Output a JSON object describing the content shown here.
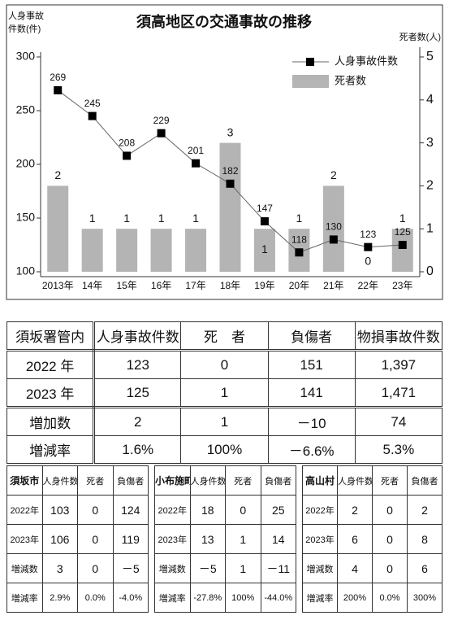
{
  "chart_data": {
    "type": "combo",
    "title": "須高地区の交通事故の推移",
    "ylabel": [
      "人身事故",
      "件数(件)"
    ],
    "y2label": "死者数(人)",
    "categories": [
      "2013年",
      "14年",
      "15年",
      "16年",
      "17年",
      "18年",
      "19年",
      "20年",
      "21年",
      "22年",
      "23年"
    ],
    "series": [
      {
        "name": "人身事故件数",
        "type": "line",
        "axis": "y",
        "color": "#000000",
        "values": [
          269,
          245,
          208,
          229,
          201,
          182,
          147,
          118,
          130,
          123,
          125
        ]
      },
      {
        "name": "死者数",
        "type": "bar",
        "axis": "y2",
        "color": "#b4b4b4",
        "values": [
          2,
          1,
          1,
          1,
          1,
          3,
          1,
          1,
          2,
          0,
          1
        ]
      }
    ],
    "ylim": [
      100,
      300
    ],
    "yticks": [
      100,
      150,
      200,
      250,
      300
    ],
    "y2lim": [
      0,
      5
    ],
    "y2ticks": [
      0,
      1,
      2,
      3,
      4,
      5
    ],
    "legend": "upper right",
    "grid": false
  },
  "main_table": {
    "header": [
      "須坂署管内",
      "人身事故件数",
      "死　者",
      "負傷者",
      "物損事故件数"
    ],
    "rows": [
      [
        "2022 年",
        "123",
        "0",
        "151",
        "1,397"
      ],
      [
        "2023 年",
        "125",
        "1",
        "141",
        "1,471"
      ],
      [
        "増加数",
        "2",
        "1",
        "－10",
        "74"
      ],
      [
        "増減率",
        "1.6%",
        "100%",
        "－6.6%",
        "5.3%"
      ]
    ]
  },
  "area_tables": [
    {
      "header": [
        "須坂市",
        "人身件数",
        "死者",
        "負傷者"
      ],
      "rows": [
        [
          "2022年",
          "103",
          "0",
          "124"
        ],
        [
          "2023年",
          "106",
          "0",
          "119"
        ],
        [
          "増減数",
          "3",
          "0",
          "－5"
        ],
        [
          "増減率",
          "2.9%",
          "0.0%",
          "-4.0%"
        ]
      ]
    },
    {
      "header": [
        "小布施町",
        "人身件数",
        "死者",
        "負傷者"
      ],
      "rows": [
        [
          "2022年",
          "18",
          "0",
          "25"
        ],
        [
          "2023年",
          "13",
          "1",
          "14"
        ],
        [
          "増減数",
          "－5",
          "1",
          "－11"
        ],
        [
          "増減率",
          "-27.8%",
          "100%",
          "-44.0%"
        ]
      ]
    },
    {
      "header": [
        "高山村",
        "人身件数",
        "死者",
        "負傷者"
      ],
      "rows": [
        [
          "2022年",
          "2",
          "0",
          "2"
        ],
        [
          "2023年",
          "6",
          "0",
          "8"
        ],
        [
          "増減数",
          "4",
          "0",
          "6"
        ],
        [
          "増減率",
          "200%",
          "0.0%",
          "300%"
        ]
      ]
    }
  ]
}
